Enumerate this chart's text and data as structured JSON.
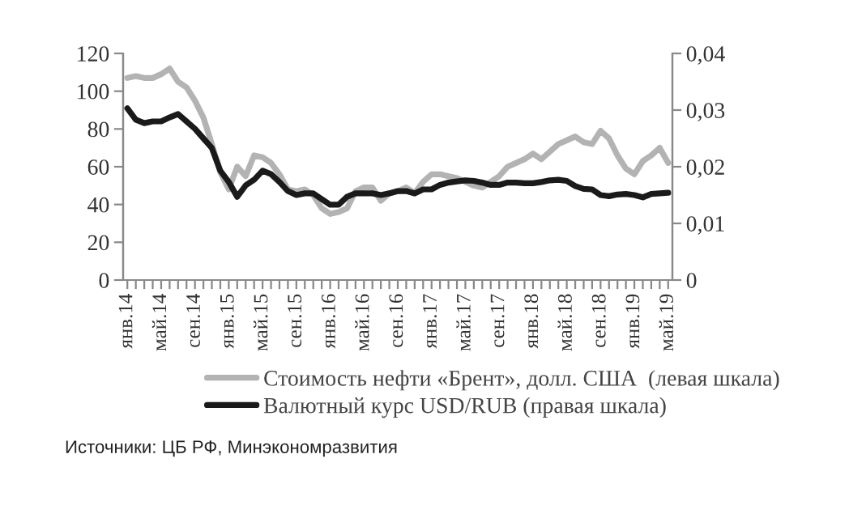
{
  "chart_data": {
    "type": "line",
    "categories": [
      "янв.14",
      null,
      null,
      null,
      "май.14",
      null,
      null,
      null,
      "сен.14",
      null,
      null,
      null,
      "янв.15",
      null,
      null,
      null,
      "май.15",
      null,
      null,
      null,
      "сен.15",
      null,
      null,
      null,
      "янв.16",
      null,
      null,
      null,
      "май.16",
      null,
      null,
      null,
      "сен.16",
      null,
      null,
      null,
      "янв.17",
      null,
      null,
      null,
      "май.17",
      null,
      null,
      null,
      "сен.17",
      null,
      null,
      null,
      "янв.18",
      null,
      null,
      null,
      "май.18",
      null,
      null,
      null,
      "сен.18",
      null,
      null,
      null,
      "янв.19",
      null,
      null,
      null,
      "май.19"
    ],
    "series": [
      {
        "name": "Стоимость нефти «Брент», долл. США  (левая шкала)",
        "color": "#b3b3b3",
        "values": [
          107,
          108,
          107,
          107,
          109,
          112,
          105,
          102,
          95,
          86,
          72,
          57,
          48,
          60,
          55,
          66,
          65,
          62,
          56,
          48,
          47,
          48,
          45,
          38,
          35,
          36,
          38,
          47,
          49,
          49,
          42,
          46,
          47,
          49,
          46,
          52,
          56,
          56,
          55,
          54,
          52,
          50,
          49,
          52,
          55,
          60,
          62,
          64,
          67,
          64,
          68,
          72,
          74,
          76,
          73,
          72,
          79,
          75,
          66,
          59,
          56,
          63,
          66,
          70,
          62
        ]
      },
      {
        "name": "Валютный курс USD/RUB (правая шкала)",
        "color": "#1a1a1a",
        "axis": "y2",
        "values": [
          0.0303,
          0.0283,
          0.0277,
          0.028,
          0.028,
          0.0287,
          0.0293,
          0.028,
          0.0267,
          0.025,
          0.0233,
          0.0193,
          0.0173,
          0.0147,
          0.0167,
          0.0177,
          0.0193,
          0.0187,
          0.0173,
          0.0157,
          0.015,
          0.0153,
          0.0153,
          0.0143,
          0.0133,
          0.0133,
          0.0147,
          0.0153,
          0.0153,
          0.0153,
          0.015,
          0.0153,
          0.0157,
          0.0157,
          0.0153,
          0.016,
          0.016,
          0.0168,
          0.0172,
          0.0174,
          0.0176,
          0.0175,
          0.0172,
          0.0168,
          0.0168,
          0.0172,
          0.0172,
          0.0171,
          0.0171,
          0.0173,
          0.0176,
          0.0177,
          0.0175,
          0.0166,
          0.0161,
          0.016,
          0.015,
          0.0148,
          0.0151,
          0.0152,
          0.015,
          0.0146,
          0.0152,
          0.0153,
          0.0154
        ]
      }
    ],
    "ylim": [
      0,
      120
    ],
    "yticks": [
      0,
      20,
      40,
      60,
      80,
      100,
      120
    ],
    "y2lim": [
      0,
      0.04
    ],
    "y2ticks": [
      {
        "value": 0,
        "label": "0"
      },
      {
        "value": 0.01,
        "label": "0,01"
      },
      {
        "value": 0.02,
        "label": "0,02"
      },
      {
        "value": 0.03,
        "label": "0,03"
      },
      {
        "value": 0.04,
        "label": "0,04"
      }
    ],
    "legend": "bottom",
    "grid": false,
    "annotations": [
      "Источники: ЦБ РФ, Минэкономразвития"
    ]
  }
}
